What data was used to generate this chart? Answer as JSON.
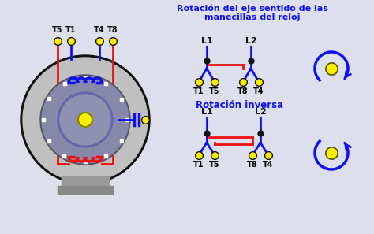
{
  "bg_color": "#dde0ec",
  "blue": "#1010ee",
  "red": "#ee1010",
  "yellow": "#ffee00",
  "dark": "#111111",
  "gray_motor_outer": "#bbbbbb",
  "gray_stator": "#aaaaaa",
  "gray_rotor": "#999999",
  "title1": "Rotación del eje sentido de las",
  "title1b": "manecillas del reloj",
  "title2": "Rotación inversa"
}
